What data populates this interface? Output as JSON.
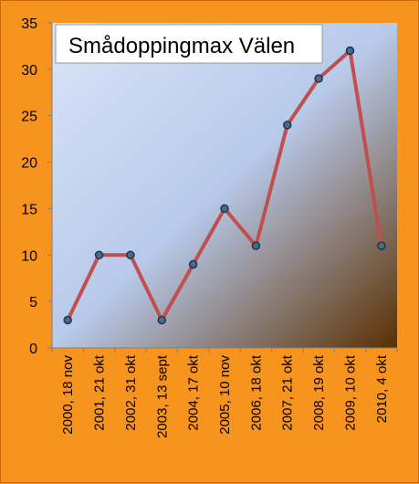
{
  "chart_data": {
    "type": "line",
    "title": "Smådoppingmax Välen",
    "categories": [
      "2000, 18 nov",
      "2001, 21 okt",
      "2002, 31 okt",
      "2003, 13 sept",
      "2004, 17 okt",
      "2005, 10 nov",
      "2006, 18 okt",
      "2007, 21 okt",
      "2008, 19 okt",
      "2009, 10 okt",
      "2010, 4 okt"
    ],
    "values": [
      3,
      10,
      10,
      3,
      9,
      15,
      11,
      24,
      29,
      32,
      11
    ],
    "ylim": [
      0,
      35
    ],
    "yticks": [
      0,
      5,
      10,
      15,
      20,
      25,
      30,
      35
    ],
    "xlabel": "",
    "ylabel": "",
    "grid": false,
    "legend": "none",
    "colors": {
      "background": "#f7941d",
      "plot_gradient_start": "#d9e4f7",
      "plot_gradient_mid": "#b8c9ea",
      "plot_gradient_end": "#5a2f00",
      "line": "#c0504d",
      "marker_fill": "#4a6a8a",
      "marker_edge": "#1f3550"
    }
  }
}
